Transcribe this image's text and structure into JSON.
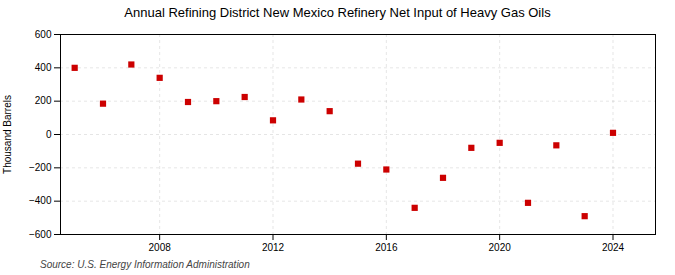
{
  "chart_data": {
    "type": "scatter",
    "title": "Annual Refining District New Mexico Refinery Net Input of Heavy Gas Oils",
    "ylabel": "Thousand Barrels",
    "source": "Source: U.S. Energy Information Administration",
    "x": [
      2005,
      2006,
      2007,
      2008,
      2009,
      2010,
      2011,
      2012,
      2013,
      2014,
      2015,
      2016,
      2017,
      2018,
      2019,
      2020,
      2021,
      2022,
      2023,
      2024
    ],
    "values": [
      400,
      185,
      420,
      340,
      195,
      200,
      225,
      85,
      210,
      140,
      -175,
      -210,
      -440,
      -260,
      -80,
      -50,
      -410,
      -65,
      -490,
      10
    ],
    "color": "#cc0000",
    "marker": "square",
    "xlim": [
      2004.5,
      2025.5
    ],
    "xticks": [
      2008,
      2012,
      2016,
      2020,
      2024
    ],
    "ylim": [
      -600,
      600
    ],
    "yticks": [
      -600,
      -400,
      -200,
      0,
      200,
      400,
      600
    ],
    "grid": true
  }
}
